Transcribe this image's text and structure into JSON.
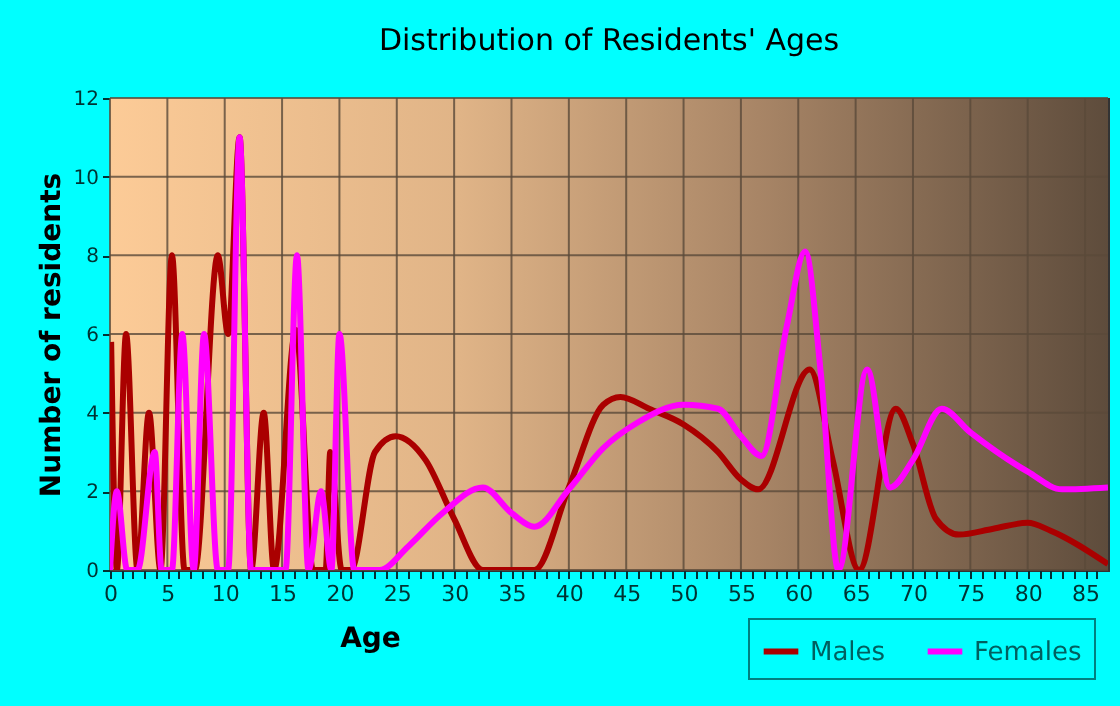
{
  "chart_data": {
    "type": "line",
    "title": "Distribution of Residents' Ages",
    "xlabel": "Age",
    "ylabel": "Number of residents",
    "xlim": [
      0,
      87
    ],
    "ylim": [
      0,
      12
    ],
    "yticks": [
      0,
      2,
      4,
      6,
      8,
      10,
      12
    ],
    "xticks": [
      0,
      {
        "value": 1,
        "label": null
      },
      {
        "value": 2,
        "label": null
      },
      {
        "value": 3,
        "label": null
      },
      {
        "value": 4,
        "label": null
      },
      5,
      {
        "value": 6,
        "label": null
      },
      {
        "value": 7,
        "label": null
      },
      {
        "value": 8,
        "label": null
      },
      {
        "value": 9,
        "label": null
      },
      10,
      {
        "value": 11,
        "label": null
      },
      {
        "value": 12,
        "label": null
      },
      {
        "value": 13,
        "label": null
      },
      {
        "value": 14,
        "label": null
      },
      15,
      {
        "value": 16,
        "label": null
      },
      {
        "value": 17,
        "label": null
      },
      {
        "value": 18,
        "label": null
      },
      {
        "value": 19,
        "label": null
      },
      20,
      {
        "value": 21,
        "label": null
      },
      {
        "value": 22,
        "label": null
      },
      {
        "value": 23,
        "label": null
      },
      {
        "value": 24,
        "label": null
      },
      25,
      {
        "value": 26,
        "label": null
      },
      {
        "value": 27,
        "label": null
      },
      {
        "value": 28,
        "label": null
      },
      {
        "value": 29,
        "label": null
      },
      30,
      {
        "value": 31,
        "label": null
      },
      {
        "value": 32,
        "label": null
      },
      {
        "value": 33,
        "label": null
      },
      {
        "value": 34,
        "label": null
      },
      35,
      {
        "value": 36,
        "label": null
      },
      {
        "value": 37,
        "label": null
      },
      {
        "value": 38,
        "label": null
      },
      {
        "value": 39,
        "label": null
      },
      40,
      {
        "value": 41,
        "label": null
      },
      {
        "value": 42,
        "label": null
      },
      {
        "value": 43,
        "label": null
      },
      {
        "value": 44,
        "label": null
      },
      45,
      {
        "value": 46,
        "label": null
      },
      {
        "value": 47,
        "label": null
      },
      {
        "value": 48,
        "label": null
      },
      {
        "value": 49,
        "label": null
      },
      50,
      {
        "value": 51,
        "label": null
      },
      {
        "value": 52,
        "label": null
      },
      {
        "value": 53,
        "label": null
      },
      {
        "value": 54,
        "label": null
      },
      55,
      {
        "value": 56,
        "label": null
      },
      {
        "value": 57,
        "label": null
      },
      {
        "value": 58,
        "label": null
      },
      {
        "value": 59,
        "label": null
      },
      60,
      {
        "value": 61,
        "label": null
      },
      {
        "value": 62,
        "label": null
      },
      {
        "value": 63,
        "label": null
      },
      {
        "value": 64,
        "label": null
      },
      65,
      {
        "value": 66,
        "label": null
      },
      {
        "value": 67,
        "label": null
      },
      {
        "value": 68,
        "label": null
      },
      {
        "value": 69,
        "label": null
      },
      70,
      {
        "value": 71,
        "label": null
      },
      {
        "value": 72,
        "label": null
      },
      {
        "value": 73,
        "label": null
      },
      {
        "value": 74,
        "label": null
      },
      75,
      {
        "value": 76,
        "label": null
      },
      {
        "value": 77,
        "label": null
      },
      {
        "value": 78,
        "label": null
      },
      {
        "value": 79,
        "label": null
      },
      80,
      {
        "value": 81,
        "label": null
      },
      {
        "value": 82,
        "label": null
      },
      {
        "value": 83,
        "label": null
      },
      {
        "value": 84,
        "label": null
      },
      85,
      {
        "value": 86,
        "label": null
      }
    ],
    "grid": true,
    "legend": "bottom right",
    "marker": "none",
    "line_style": "solid",
    "series": [
      {
        "name": "Males",
        "color": "#aa0000",
        "x": [
          0.1,
          0.6,
          1.4,
          2.4,
          3.4,
          4.4,
          5.4,
          6.5,
          7.4,
          9.4,
          10.3,
          11.3,
          12.3,
          13.4,
          14.3,
          16.2,
          17.7,
          18.8,
          19.2,
          20.2,
          21.0,
          23.1,
          24.9,
          27.5,
          30,
          32.5,
          37,
          40,
          43,
          44.5,
          47,
          50,
          53,
          55,
          56.5,
          61,
          63,
          65.3,
          68.5,
          70,
          72,
          74,
          77,
          80,
          82,
          87
        ],
        "values": [
          5.8,
          0,
          6,
          0,
          4,
          0,
          8,
          0,
          0,
          8,
          6,
          11,
          0,
          4,
          0,
          6.1,
          0,
          0,
          3,
          0,
          0,
          3,
          3.4,
          2.8,
          1.3,
          0,
          0,
          2.1,
          4.2,
          4.4,
          4.1,
          3.7,
          3.0,
          2.3,
          2.05,
          5.1,
          2.8,
          0,
          4.1,
          3.2,
          1.3,
          0.9,
          1.05,
          1.2,
          1.0,
          0.15
        ]
      },
      {
        "name": "Females",
        "color": "#ff00ff",
        "x": [
          0,
          0.6,
          1.5,
          2.4,
          3.9,
          4.5,
          5.4,
          6.3,
          7.3,
          8.2,
          9.4,
          10.3,
          11.3,
          12.3,
          15.3,
          16.3,
          17.3,
          18.4,
          19.3,
          20.0,
          21.3,
          23.5,
          26,
          29,
          32.5,
          35,
          37,
          40,
          43,
          46,
          50,
          53,
          55,
          56.8,
          59,
          60.6,
          62,
          63.5,
          66,
          68,
          70,
          72.5,
          75,
          80,
          83,
          87
        ],
        "values": [
          0,
          2,
          0,
          0,
          3,
          0,
          0,
          6,
          0,
          6,
          0,
          0,
          11,
          0,
          0,
          8,
          0,
          2,
          0,
          6,
          0,
          0,
          0.6,
          1.45,
          2.1,
          1.45,
          1.1,
          2.05,
          3.1,
          3.75,
          4.2,
          4.1,
          3.4,
          2.9,
          6.2,
          8.1,
          4.9,
          0,
          5.1,
          2.1,
          2.8,
          4.1,
          3.5,
          2.5,
          2.05,
          2.1
        ]
      }
    ]
  }
}
